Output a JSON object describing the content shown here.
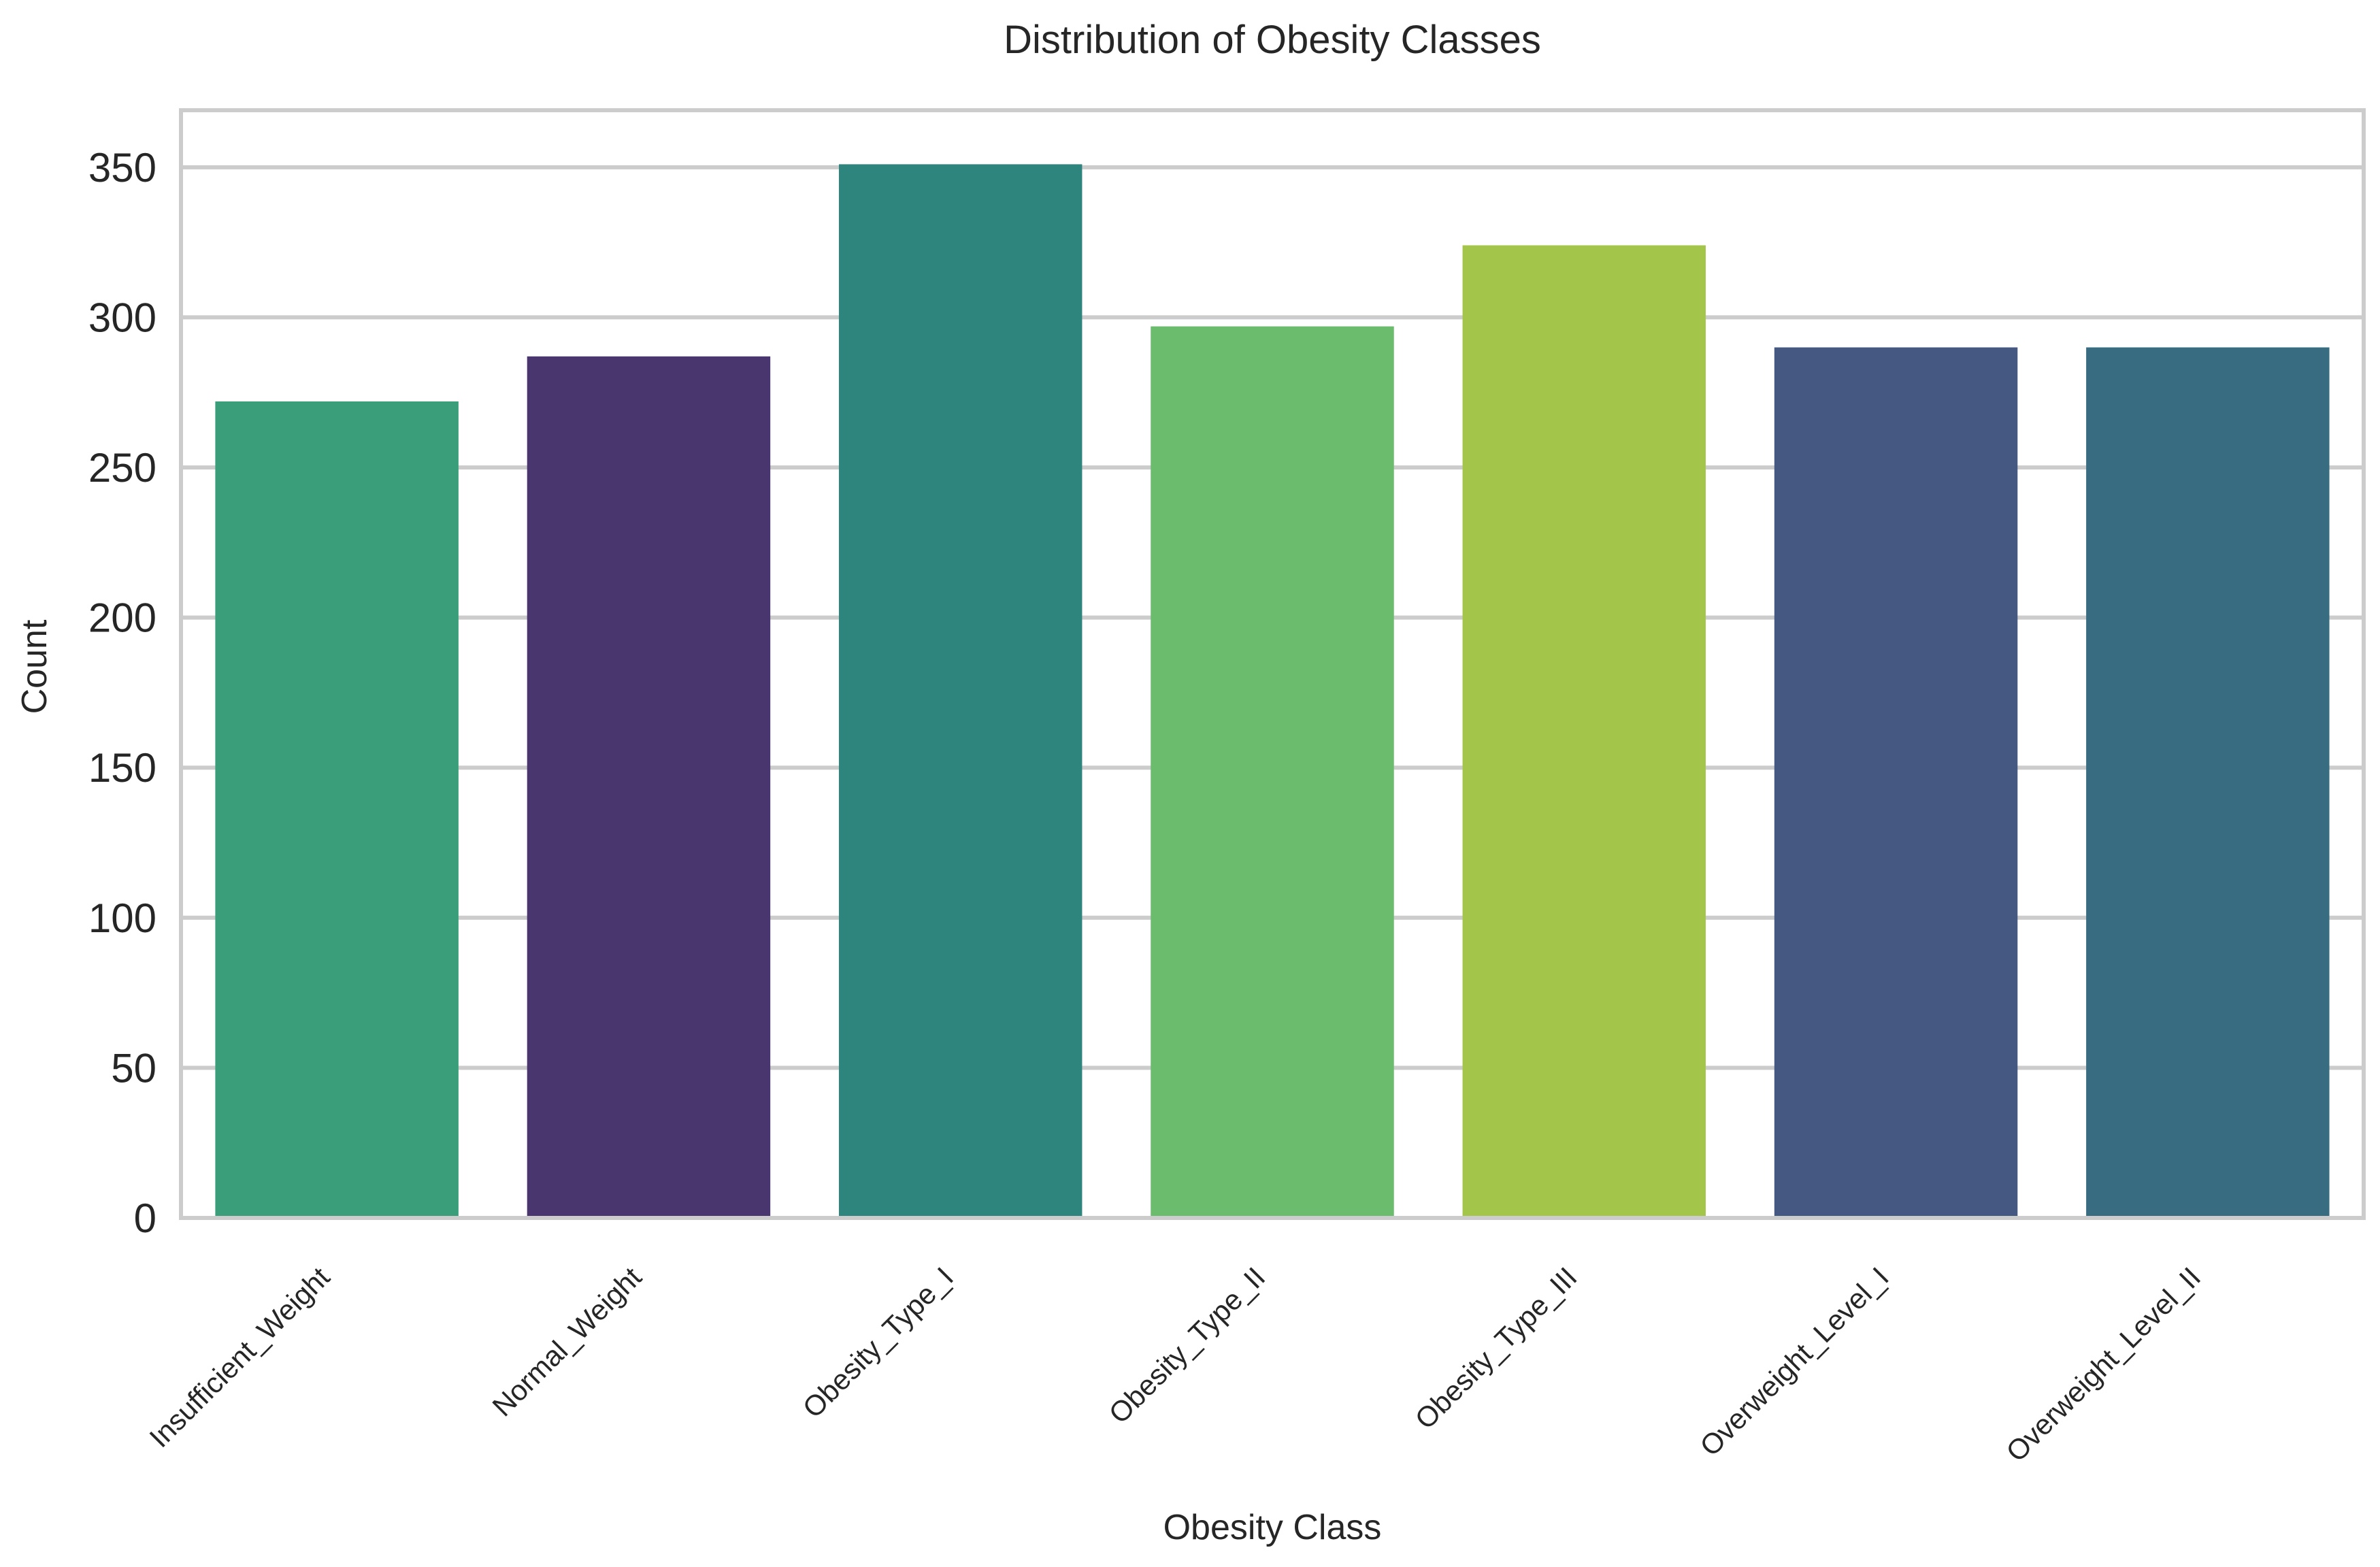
{
  "chart_data": {
    "type": "bar",
    "title": "Distribution of Obesity Classes",
    "xlabel": "Obesity Class",
    "ylabel": "Count",
    "categories": [
      "Insufficient_Weight",
      "Normal_Weight",
      "Obesity_Type_I",
      "Obesity_Type_II",
      "Obesity_Type_III",
      "Overweight_Level_I",
      "Overweight_Level_II"
    ],
    "values": [
      272,
      287,
      351,
      297,
      324,
      290,
      290
    ],
    "colors": [
      "#3b9e7b",
      "#49366f",
      "#2e857e",
      "#6bbc6c",
      "#a3c64a",
      "#455882",
      "#386d81"
    ],
    "ylim": [
      0,
      369
    ],
    "yticks": [
      0,
      50,
      100,
      150,
      200,
      250,
      300,
      350
    ],
    "grid": "y",
    "legend": "none"
  }
}
